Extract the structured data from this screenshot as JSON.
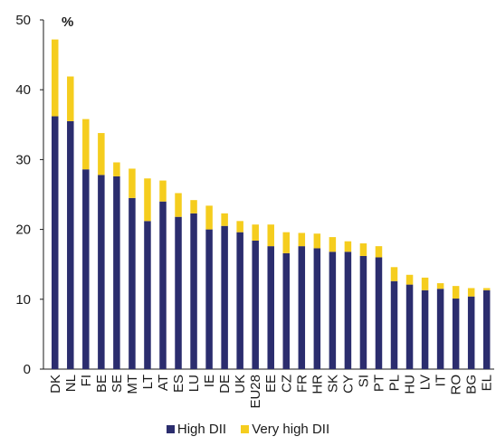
{
  "chart_data": {
    "type": "bar",
    "stacked": true,
    "unit_label": "%",
    "ylim": [
      0,
      50
    ],
    "yticks": [
      0,
      10,
      20,
      30,
      40,
      50
    ],
    "grid": false,
    "legend_position": "bottom",
    "categories": [
      "DK",
      "NL",
      "FI",
      "BE",
      "SE",
      "MT",
      "LT",
      "AT",
      "ES",
      "LU",
      "IE",
      "DE",
      "UK",
      "EU28",
      "EE",
      "CZ",
      "FR",
      "HR",
      "SK",
      "CY",
      "SI",
      "PT",
      "PL",
      "HU",
      "LV",
      "IT",
      "RO",
      "BG",
      "EL"
    ],
    "series": [
      {
        "name": "High DII",
        "color": "#2b2d6e",
        "values": [
          36.2,
          35.5,
          28.6,
          27.8,
          27.6,
          24.5,
          21.2,
          24.0,
          21.8,
          22.3,
          20.0,
          20.5,
          19.6,
          18.4,
          17.6,
          16.6,
          17.6,
          17.3,
          16.8,
          16.8,
          16.2,
          16.0,
          12.6,
          12.1,
          11.3,
          11.5,
          10.1,
          10.4,
          11.3
        ]
      },
      {
        "name": "Very high DII",
        "color": "#f5cd1e",
        "values": [
          11.0,
          6.4,
          7.2,
          6.0,
          2.0,
          4.2,
          6.1,
          3.0,
          3.4,
          1.9,
          3.4,
          1.8,
          1.6,
          2.3,
          3.1,
          3.0,
          1.9,
          2.1,
          2.1,
          1.5,
          1.8,
          1.6,
          2.0,
          1.4,
          1.8,
          0.8,
          1.8,
          1.2,
          0.3
        ]
      }
    ]
  }
}
